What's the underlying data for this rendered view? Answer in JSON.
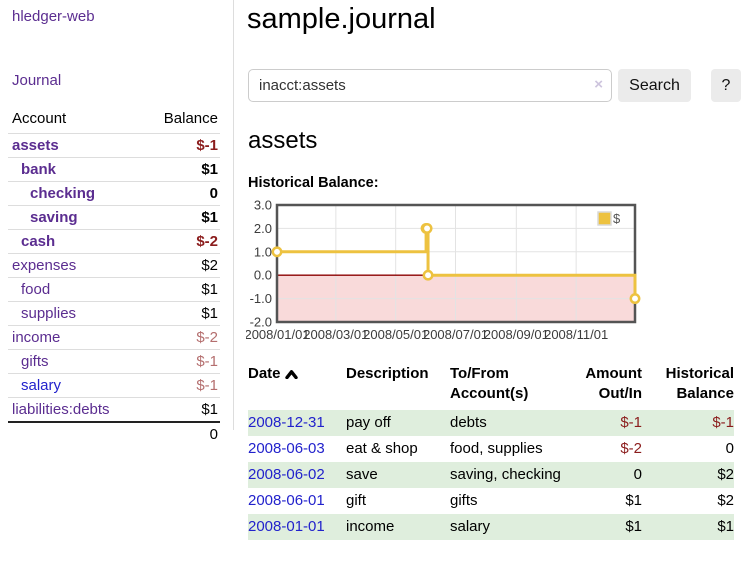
{
  "app": {
    "brand": "hledger-web",
    "nav_journal": "Journal"
  },
  "sidebar": {
    "headers": {
      "account": "Account",
      "balance": "Balance"
    },
    "rows": [
      {
        "name": "assets",
        "balance": "$-1",
        "depth": 1,
        "bold": true,
        "balance_tone": "strong",
        "name_color": "purple"
      },
      {
        "name": "bank",
        "balance": "$1",
        "depth": 2,
        "bold": true,
        "balance_tone": "plain",
        "name_color": "purple"
      },
      {
        "name": "checking",
        "balance": "0",
        "depth": 3,
        "bold": true,
        "balance_tone": "plain",
        "name_color": "purple"
      },
      {
        "name": "saving",
        "balance": "$1",
        "depth": 3,
        "bold": true,
        "balance_tone": "plain",
        "name_color": "purple"
      },
      {
        "name": "cash",
        "balance": "$-2",
        "depth": 2,
        "bold": true,
        "balance_tone": "strong",
        "name_color": "purple"
      },
      {
        "name": "expenses",
        "balance": "$2",
        "depth": 1,
        "bold": false,
        "balance_tone": "plain",
        "name_color": "purple"
      },
      {
        "name": "food",
        "balance": "$1",
        "depth": 2,
        "bold": false,
        "balance_tone": "plain",
        "name_color": "purple"
      },
      {
        "name": "supplies",
        "balance": "$1",
        "depth": 2,
        "bold": false,
        "balance_tone": "plain",
        "name_color": "purple"
      },
      {
        "name": "income",
        "balance": "$-2",
        "depth": 1,
        "bold": false,
        "balance_tone": "muted",
        "name_color": "purple"
      },
      {
        "name": "gifts",
        "balance": "$-1",
        "depth": 2,
        "bold": false,
        "balance_tone": "muted",
        "name_color": "purple"
      },
      {
        "name": "salary",
        "balance": "$-1",
        "depth": 2,
        "bold": false,
        "balance_tone": "muted",
        "name_color": "blue"
      },
      {
        "name": "liabilities:debts",
        "balance": "$1",
        "depth": 1,
        "bold": false,
        "balance_tone": "plain",
        "name_color": "purple"
      }
    ],
    "total": "0"
  },
  "header": {
    "title": "sample.journal"
  },
  "search": {
    "value": "inacct:assets",
    "clear_icon": "×",
    "button_label": "Search",
    "help_label": "?"
  },
  "account_page": {
    "heading": "assets",
    "chart_label": "Historical Balance:"
  },
  "chart_data": {
    "type": "line",
    "step": true,
    "series": [
      {
        "name": "$",
        "color": "#edc240",
        "points": [
          [
            "2008-01-01",
            1
          ],
          [
            "2008-06-01",
            2
          ],
          [
            "2008-06-02",
            2
          ],
          [
            "2008-06-03",
            0
          ],
          [
            "2008-12-31",
            -1
          ]
        ]
      }
    ],
    "xrange": [
      "2008-01-01",
      "2008-12-31"
    ],
    "ylim": [
      -2,
      3
    ],
    "yticks": [
      "3.0",
      "2.0",
      "1.0",
      "0.0",
      "-1.0",
      "-2.0"
    ],
    "xticks": [
      "2008/01/01",
      "2008/03/01",
      "2008/05/01",
      "2008/07/01",
      "2008/09/01",
      "2008/11/01"
    ],
    "grid": true,
    "legend": "$",
    "legend_position": "top-right",
    "negative_region_fill": "#f9dada",
    "zero_line_color": "#8b0000"
  },
  "register": {
    "headers": {
      "date": "Date",
      "description": "Description",
      "accounts": "To/From Account(s)",
      "amount": "Amount Out/In",
      "balance": "Historical Balance"
    },
    "rows": [
      {
        "date": "2008-12-31",
        "description": "pay off",
        "accounts": "debts",
        "amount": "$-1",
        "balance": "$-1",
        "amount_neg": true,
        "balance_neg": true,
        "stripe": true
      },
      {
        "date": "2008-06-03",
        "description": "eat & shop",
        "accounts": "food, supplies",
        "amount": "$-2",
        "balance": "0",
        "amount_neg": true,
        "balance_neg": false,
        "stripe": false
      },
      {
        "date": "2008-06-02",
        "description": "save",
        "accounts": "saving, checking",
        "amount": "0",
        "balance": "$2",
        "amount_neg": false,
        "balance_neg": false,
        "stripe": true
      },
      {
        "date": "2008-06-01",
        "description": "gift",
        "accounts": "gifts",
        "amount": "$1",
        "balance": "$2",
        "amount_neg": false,
        "balance_neg": false,
        "stripe": false
      },
      {
        "date": "2008-01-01",
        "description": "income",
        "accounts": "salary",
        "amount": "$1",
        "balance": "$1",
        "amount_neg": false,
        "balance_neg": false,
        "stripe": true
      }
    ]
  },
  "colors": {
    "link_purple": "#5b2d90",
    "link_blue": "#2222cc",
    "negative_strong": "#8b1c1c",
    "negative_muted": "#b46e6e",
    "row_stripe_green": "#dfeedd",
    "chart_line": "#edc240",
    "chart_border": "#545454",
    "zero_line": "#8b0000",
    "negative_fill": "#f9dada"
  }
}
